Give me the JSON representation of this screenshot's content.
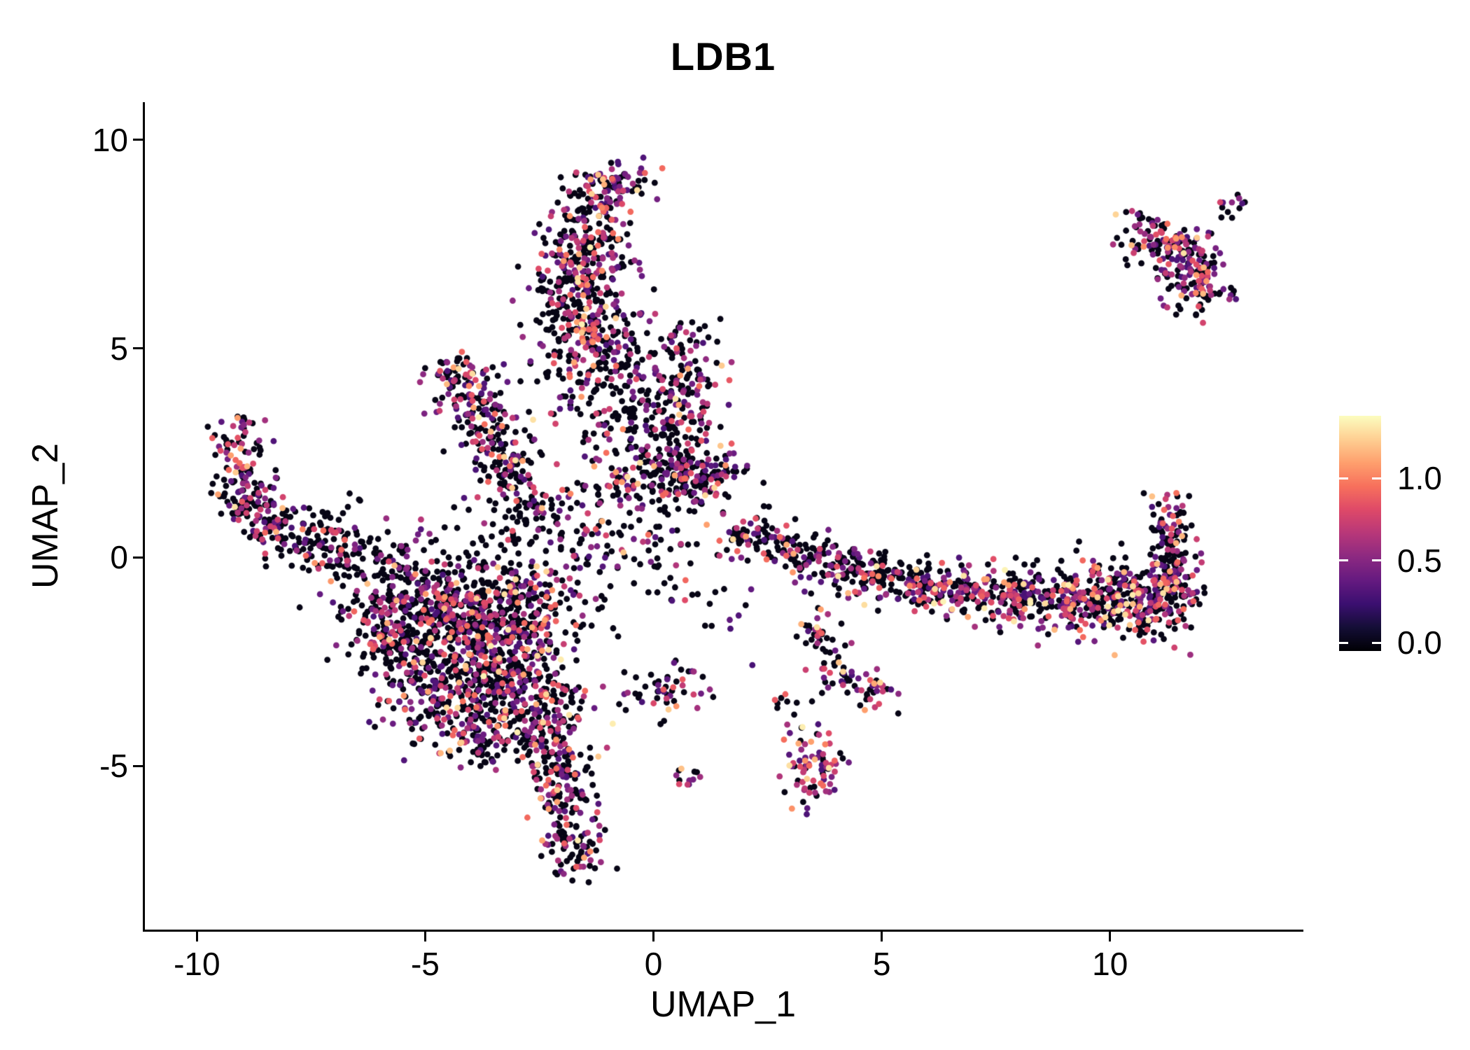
{
  "chart_data": {
    "type": "scatter",
    "title": "LDB1",
    "xlabel": "UMAP_1",
    "ylabel": "UMAP_2",
    "x_ticks": [
      -10,
      -5,
      0,
      5,
      10
    ],
    "y_ticks": [
      -5,
      0,
      5,
      10
    ],
    "xlim": [
      -11.14,
      14.19
    ],
    "ylim": [
      -8.92,
      10.9
    ],
    "grid": false,
    "legend_position": "right",
    "point_radius": 4.4,
    "seed": 1337,
    "colorbar": {
      "colormap": "magma",
      "vmin": -0.05,
      "vmax": 1.38,
      "ticks": [
        {
          "label": "1.0",
          "value": 1.0
        },
        {
          "label": "0.5",
          "value": 0.5
        },
        {
          "label": "0.0",
          "value": 0.0
        }
      ],
      "stops": [
        [
          0.0,
          "#000004"
        ],
        [
          0.1,
          "#140E36"
        ],
        [
          0.2,
          "#3B0F70"
        ],
        [
          0.3,
          "#651A80"
        ],
        [
          0.4,
          "#8C2981"
        ],
        [
          0.5,
          "#B73779"
        ],
        [
          0.6,
          "#DE4968"
        ],
        [
          0.7,
          "#F7705C"
        ],
        [
          0.8,
          "#FE9F6D"
        ],
        [
          0.9,
          "#FECF92"
        ],
        [
          1.0,
          "#FCFDBF"
        ]
      ]
    },
    "zero_expression_color": "#000004",
    "clusters": [
      {
        "x": -0.85,
        "y": 8.95,
        "sx": 0.5,
        "sy": 0.3,
        "n": 80,
        "p_pos": 0.45,
        "p_hi": 0.04
      },
      {
        "x": -1.35,
        "y": 8.2,
        "sx": 0.45,
        "sy": 0.4,
        "n": 70,
        "p_pos": 0.35,
        "p_hi": 0.03
      },
      {
        "x": -1.55,
        "y": 7.3,
        "sx": 0.5,
        "sy": 0.55,
        "n": 120,
        "p_pos": 0.35,
        "p_hi": 0.04
      },
      {
        "x": -1.6,
        "y": 6.3,
        "sx": 0.55,
        "sy": 0.6,
        "n": 150,
        "p_pos": 0.35,
        "p_hi": 0.05
      },
      {
        "x": -1.45,
        "y": 5.3,
        "sx": 0.6,
        "sy": 0.5,
        "n": 130,
        "p_pos": 0.4,
        "p_hi": 0.06
      },
      {
        "x": -1.2,
        "y": 4.3,
        "sx": 0.7,
        "sy": 0.5,
        "n": 90,
        "p_pos": 0.3,
        "p_hi": 0.03
      },
      {
        "x": 0.45,
        "y": 5.25,
        "sx": 0.3,
        "sy": 0.3,
        "n": 25,
        "p_pos": 0.3,
        "p_hi": 0
      },
      {
        "x": 0.75,
        "y": 4.05,
        "sx": 0.45,
        "sy": 0.45,
        "n": 90,
        "p_pos": 0.5,
        "p_hi": 0.05
      },
      {
        "x": 0.3,
        "y": 3.1,
        "sx": 0.5,
        "sy": 0.4,
        "n": 45,
        "p_pos": 0.3,
        "p_hi": 0.02
      },
      {
        "x": 1.05,
        "y": 2.0,
        "sx": 0.45,
        "sy": 0.35,
        "n": 110,
        "p_pos": 0.45,
        "p_hi": 0.04
      },
      {
        "x": 0.1,
        "y": 1.8,
        "sx": 0.6,
        "sy": 0.35,
        "n": 90,
        "p_pos": 0.35,
        "p_hi": 0.03
      },
      {
        "x": -4.35,
        "y": 4.35,
        "sx": 0.3,
        "sy": 0.3,
        "n": 55,
        "p_pos": 0.45,
        "p_hi": 0.06
      },
      {
        "x": -4.0,
        "y": 3.7,
        "sx": 0.4,
        "sy": 0.4,
        "n": 70,
        "p_pos": 0.4,
        "p_hi": 0.04
      },
      {
        "x": -3.5,
        "y": 2.9,
        "sx": 0.45,
        "sy": 0.5,
        "n": 80,
        "p_pos": 0.35,
        "p_hi": 0.03
      },
      {
        "x": -3.1,
        "y": 2.0,
        "sx": 0.4,
        "sy": 0.5,
        "n": 65,
        "p_pos": 0.3,
        "p_hi": 0.03
      },
      {
        "x": -2.7,
        "y": 1.2,
        "sx": 0.5,
        "sy": 0.4,
        "n": 45,
        "p_pos": 0.25,
        "p_hi": 0.02
      },
      {
        "x": -9.15,
        "y": 2.9,
        "sx": 0.3,
        "sy": 0.3,
        "n": 40,
        "p_pos": 0.45,
        "p_hi": 0.06
      },
      {
        "x": -9.1,
        "y": 1.9,
        "sx": 0.3,
        "sy": 0.45,
        "n": 60,
        "p_pos": 0.4,
        "p_hi": 0.04
      },
      {
        "x": -8.6,
        "y": 1.1,
        "sx": 0.4,
        "sy": 0.4,
        "n": 70,
        "p_pos": 0.4,
        "p_hi": 0.05
      },
      {
        "x": -7.9,
        "y": 0.6,
        "sx": 0.5,
        "sy": 0.4,
        "n": 70,
        "p_pos": 0.35,
        "p_hi": 0.04
      },
      {
        "x": -7.1,
        "y": 0.25,
        "sx": 0.5,
        "sy": 0.35,
        "n": 60,
        "p_pos": 0.3,
        "p_hi": 0.03
      },
      {
        "x": -6.3,
        "y": 0.0,
        "sx": 0.5,
        "sy": 0.35,
        "n": 55,
        "p_pos": 0.3,
        "p_hi": 0.03
      },
      {
        "x": -5.3,
        "y": -0.8,
        "sx": 0.7,
        "sy": 0.6,
        "n": 180,
        "p_pos": 0.35,
        "p_hi": 0.03
      },
      {
        "x": -4.3,
        "y": -1.4,
        "sx": 0.9,
        "sy": 0.8,
        "n": 320,
        "p_pos": 0.38,
        "p_hi": 0.04
      },
      {
        "x": -3.4,
        "y": -2.4,
        "sx": 0.8,
        "sy": 0.8,
        "n": 300,
        "p_pos": 0.38,
        "p_hi": 0.04
      },
      {
        "x": -4.6,
        "y": -3.2,
        "sx": 0.7,
        "sy": 0.6,
        "n": 220,
        "p_pos": 0.4,
        "p_hi": 0.05
      },
      {
        "x": -2.8,
        "y": -1.1,
        "sx": 0.7,
        "sy": 0.6,
        "n": 170,
        "p_pos": 0.35,
        "p_hi": 0.03
      },
      {
        "x": -2.5,
        "y": -3.5,
        "sx": 0.55,
        "sy": 0.6,
        "n": 140,
        "p_pos": 0.4,
        "p_hi": 0.05
      },
      {
        "x": -5.9,
        "y": -1.9,
        "sx": 0.5,
        "sy": 0.5,
        "n": 110,
        "p_pos": 0.35,
        "p_hi": 0.03
      },
      {
        "x": -2.2,
        "y": -4.7,
        "sx": 0.45,
        "sy": 0.5,
        "n": 90,
        "p_pos": 0.4,
        "p_hi": 0.05
      },
      {
        "x": -3.7,
        "y": -4.3,
        "sx": 0.5,
        "sy": 0.4,
        "n": 90,
        "p_pos": 0.4,
        "p_hi": 0.05
      },
      {
        "x": -2.0,
        "y": -5.8,
        "sx": 0.4,
        "sy": 0.5,
        "n": 85,
        "p_pos": 0.45,
        "p_hi": 0.05
      },
      {
        "x": -1.75,
        "y": -7.0,
        "sx": 0.35,
        "sy": 0.45,
        "n": 70,
        "p_pos": 0.45,
        "p_hi": 0.05
      },
      {
        "x": -1.3,
        "y": 0.6,
        "sx": 1.2,
        "sy": 0.8,
        "n": 150,
        "p_pos": 0.3,
        "p_hi": 0.02
      },
      {
        "x": -0.3,
        "y": 2.6,
        "sx": 0.8,
        "sy": 0.6,
        "n": 80,
        "p_pos": 0.3,
        "p_hi": 0.02
      },
      {
        "x": -0.6,
        "y": 3.7,
        "sx": 0.6,
        "sy": 0.4,
        "n": 40,
        "p_pos": 0.25,
        "p_hi": 0.02
      },
      {
        "x": 2.1,
        "y": 0.55,
        "sx": 0.3,
        "sy": 0.3,
        "n": 45,
        "p_pos": 0.4,
        "p_hi": 0.04
      },
      {
        "x": 2.8,
        "y": 0.2,
        "sx": 0.4,
        "sy": 0.3,
        "n": 55,
        "p_pos": 0.35,
        "p_hi": 0.03
      },
      {
        "x": 3.6,
        "y": -0.1,
        "sx": 0.4,
        "sy": 0.3,
        "n": 55,
        "p_pos": 0.35,
        "p_hi": 0.03
      },
      {
        "x": 4.4,
        "y": -0.35,
        "sx": 0.45,
        "sy": 0.3,
        "n": 65,
        "p_pos": 0.4,
        "p_hi": 0.04
      },
      {
        "x": 5.2,
        "y": -0.55,
        "sx": 0.45,
        "sy": 0.3,
        "n": 70,
        "p_pos": 0.4,
        "p_hi": 0.04
      },
      {
        "x": 6.0,
        "y": -0.7,
        "sx": 0.45,
        "sy": 0.3,
        "n": 70,
        "p_pos": 0.35,
        "p_hi": 0.04
      },
      {
        "x": 6.8,
        "y": -0.8,
        "sx": 0.45,
        "sy": 0.3,
        "n": 75,
        "p_pos": 0.4,
        "p_hi": 0.05
      },
      {
        "x": 7.6,
        "y": -0.9,
        "sx": 0.5,
        "sy": 0.32,
        "n": 85,
        "p_pos": 0.4,
        "p_hi": 0.05
      },
      {
        "x": 8.4,
        "y": -1.0,
        "sx": 0.5,
        "sy": 0.35,
        "n": 95,
        "p_pos": 0.42,
        "p_hi": 0.06
      },
      {
        "x": 9.2,
        "y": -1.05,
        "sx": 0.5,
        "sy": 0.4,
        "n": 110,
        "p_pos": 0.42,
        "p_hi": 0.06
      },
      {
        "x": 10.0,
        "y": -1.05,
        "sx": 0.5,
        "sy": 0.42,
        "n": 120,
        "p_pos": 0.45,
        "p_hi": 0.06
      },
      {
        "x": 10.8,
        "y": -0.95,
        "sx": 0.45,
        "sy": 0.45,
        "n": 130,
        "p_pos": 0.45,
        "p_hi": 0.06
      },
      {
        "x": 11.35,
        "y": -0.75,
        "sx": 0.3,
        "sy": 0.5,
        "n": 100,
        "p_pos": 0.45,
        "p_hi": 0.06
      },
      {
        "x": 11.4,
        "y": 0.3,
        "sx": 0.2,
        "sy": 0.4,
        "n": 45,
        "p_pos": 0.4,
        "p_hi": 0.05
      },
      {
        "x": 11.3,
        "y": 0.95,
        "sx": 0.25,
        "sy": 0.3,
        "n": 35,
        "p_pos": 0.4,
        "p_hi": 0.05
      },
      {
        "x": 3.55,
        "y": -1.6,
        "sx": 0.2,
        "sy": 0.3,
        "n": 25,
        "p_pos": 0.4,
        "p_hi": 0.04
      },
      {
        "x": 3.85,
        "y": -2.3,
        "sx": 0.2,
        "sy": 0.3,
        "n": 25,
        "p_pos": 0.4,
        "p_hi": 0.04
      },
      {
        "x": 4.15,
        "y": -2.85,
        "sx": 0.18,
        "sy": 0.2,
        "n": 15,
        "p_pos": 0.4,
        "p_hi": 0.04
      },
      {
        "x": 4.9,
        "y": -3.15,
        "sx": 0.22,
        "sy": 0.28,
        "n": 30,
        "p_pos": 0.45,
        "p_hi": 0.06
      },
      {
        "x": 2.9,
        "y": -3.5,
        "sx": 0.15,
        "sy": 0.15,
        "n": 8,
        "p_pos": 0.3,
        "p_hi": 0
      },
      {
        "x": 3.5,
        "y": -5.0,
        "sx": 0.28,
        "sy": 0.55,
        "n": 85,
        "p_pos": 0.5,
        "p_hi": 0.1
      },
      {
        "x": 0.45,
        "y": -3.2,
        "sx": 0.35,
        "sy": 0.3,
        "n": 40,
        "p_pos": 0.45,
        "p_hi": 0.06
      },
      {
        "x": -0.3,
        "y": -3.3,
        "sx": 0.3,
        "sy": 0.25,
        "n": 12,
        "p_pos": 0.3,
        "p_hi": 0.02
      },
      {
        "x": 0.7,
        "y": -5.25,
        "sx": 0.15,
        "sy": 0.18,
        "n": 12,
        "p_pos": 0.5,
        "p_hi": 0.15
      },
      {
        "x": 10.7,
        "y": 7.8,
        "sx": 0.3,
        "sy": 0.25,
        "n": 30,
        "p_pos": 0.5,
        "p_hi": 0.08
      },
      {
        "x": 11.3,
        "y": 7.55,
        "sx": 0.45,
        "sy": 0.3,
        "n": 70,
        "p_pos": 0.5,
        "p_hi": 0.08
      },
      {
        "x": 11.7,
        "y": 7.0,
        "sx": 0.45,
        "sy": 0.35,
        "n": 80,
        "p_pos": 0.5,
        "p_hi": 0.08
      },
      {
        "x": 11.95,
        "y": 6.35,
        "sx": 0.35,
        "sy": 0.3,
        "n": 55,
        "p_pos": 0.5,
        "p_hi": 0.08
      },
      {
        "x": 12.7,
        "y": 8.3,
        "sx": 0.18,
        "sy": 0.15,
        "n": 12,
        "p_pos": 0.25,
        "p_hi": 0.02
      },
      {
        "x": -6.8,
        "y": 1.2,
        "sx": 0.3,
        "sy": 0.3,
        "n": 6,
        "p_pos": 0.2,
        "p_hi": 0
      },
      {
        "x": 1.3,
        "y": 5.6,
        "sx": 0.3,
        "sy": 0.3,
        "n": 5,
        "p_pos": 0.2,
        "p_hi": 0
      },
      {
        "x": -0.2,
        "y": 5.0,
        "sx": 0.4,
        "sy": 0.6,
        "n": 18,
        "p_pos": 0.3,
        "p_hi": 0
      },
      {
        "x": 2.0,
        "y": -1.5,
        "sx": 0.6,
        "sy": 0.7,
        "n": 10,
        "p_pos": 0.2,
        "p_hi": 0
      },
      {
        "x": 0.3,
        "y": -0.5,
        "sx": 0.8,
        "sy": 0.6,
        "n": 15,
        "p_pos": 0.25,
        "p_hi": 0
      }
    ]
  }
}
